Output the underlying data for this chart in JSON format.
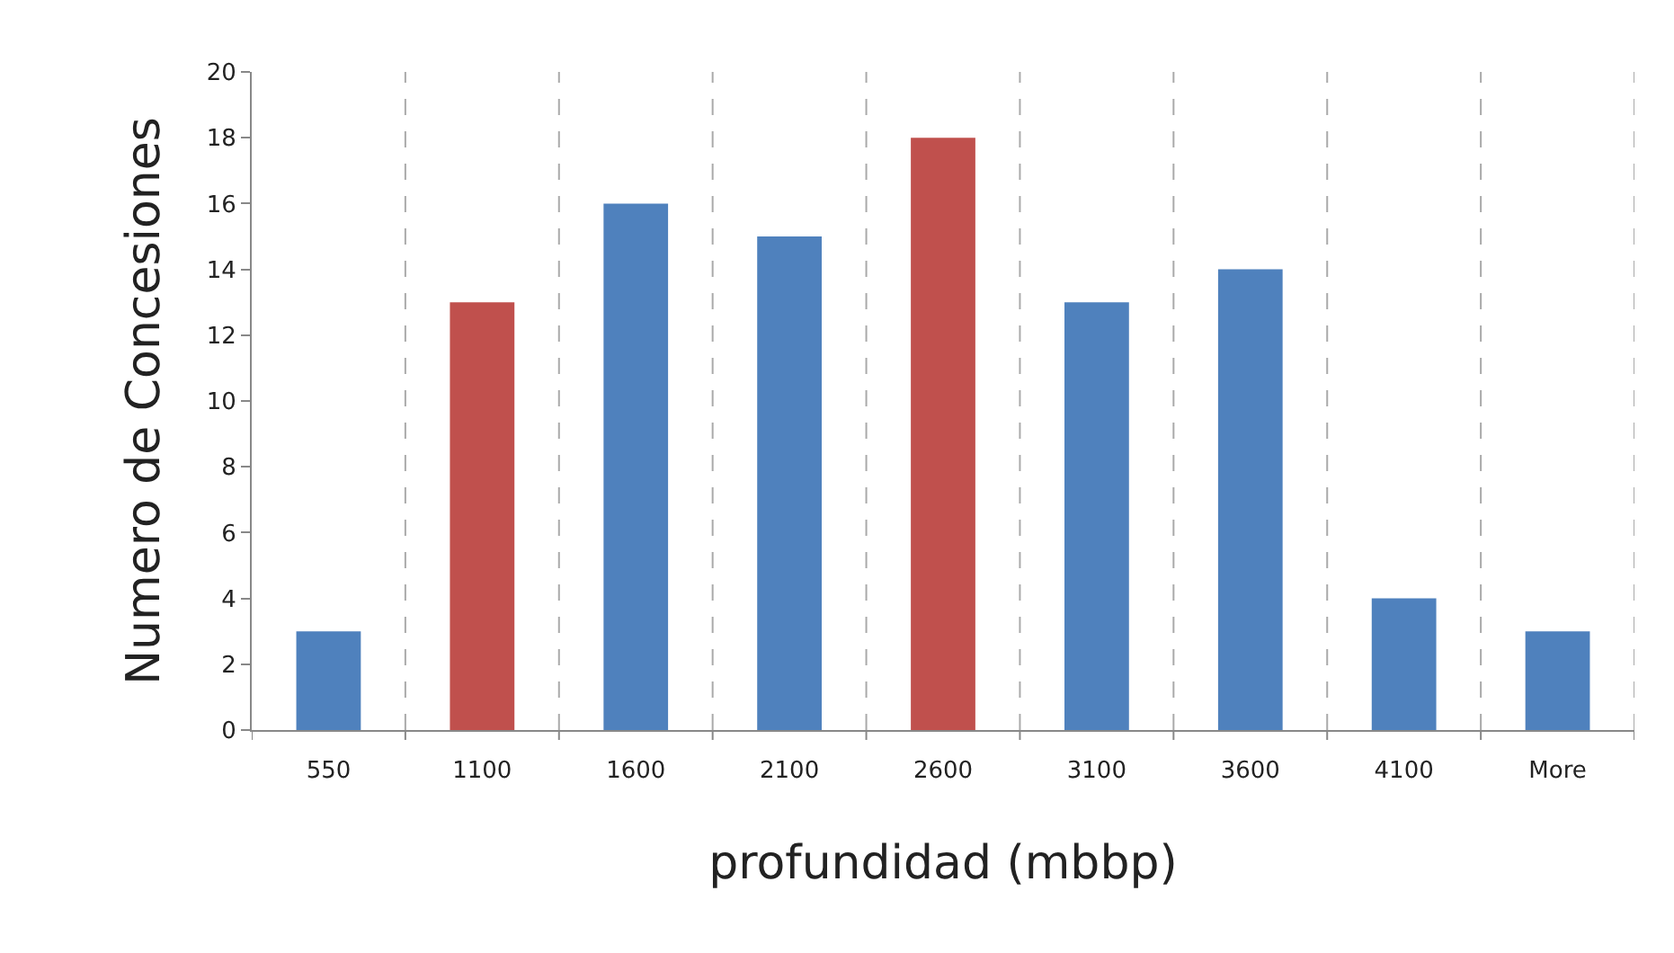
{
  "chart_data": {
    "type": "bar",
    "xlabel": "profundidad (mbbp)",
    "ylabel": "Numero de Concesiones",
    "categories": [
      "550",
      "1100",
      "1600",
      "2100",
      "2600",
      "3100",
      "3600",
      "4100",
      "More"
    ],
    "values": [
      3,
      13,
      16,
      15,
      18,
      13,
      14,
      4,
      3
    ],
    "colors": [
      "#4f81bd",
      "#c0504d",
      "#4f81bd",
      "#4f81bd",
      "#c0504d",
      "#4f81bd",
      "#4f81bd",
      "#4f81bd",
      "#4f81bd"
    ],
    "ylim": [
      0,
      20
    ],
    "yticks": [
      0,
      2,
      4,
      6,
      8,
      10,
      12,
      14,
      16,
      18,
      20
    ],
    "grid": "x"
  }
}
